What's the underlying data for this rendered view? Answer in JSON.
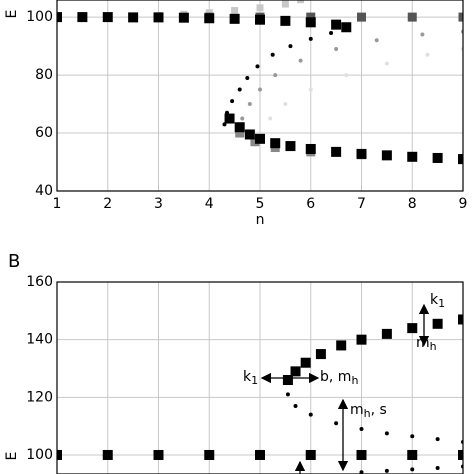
{
  "chart_data": [
    {
      "type": "scatter",
      "ylabel": "E",
      "xlabel": "n",
      "xlim": [
        1,
        9
      ],
      "ylim": [
        40,
        105.9
      ],
      "xticks": [
        1,
        2,
        3,
        4,
        5,
        6,
        7,
        8,
        9
      ],
      "yticks": [
        40,
        60,
        80,
        100
      ],
      "grid": true,
      "series": [
        {
          "color": "#c8c8c8",
          "marker": "square",
          "size": 7,
          "x": [
            3,
            3.5,
            4,
            4.5,
            5,
            5.5,
            5.8
          ],
          "y": [
            100.5,
            101,
            101.5,
            102.3,
            103.2,
            104.5,
            106
          ]
        },
        {
          "color": "#e0e0e0",
          "marker": "circle",
          "size": 4,
          "x": [
            4.9,
            5.0,
            5.2,
            5.5,
            6,
            6.7,
            7.5,
            8.3,
            9
          ],
          "y": [
            56,
            60,
            65,
            70,
            75,
            80,
            84,
            87,
            89
          ]
        },
        {
          "color": "#999999",
          "marker": "circle",
          "size": 4,
          "x": [
            4.55,
            4.65,
            4.8,
            5.0,
            5.3,
            5.8,
            6.5,
            7.3,
            8.2,
            9
          ],
          "y": [
            60,
            65,
            70,
            75,
            80,
            85,
            89,
            92,
            94,
            95
          ]
        },
        {
          "color": "#555555",
          "marker": "square",
          "size": 9,
          "x": [
            1,
            2,
            3,
            4,
            5,
            6,
            7,
            8,
            9
          ],
          "y": [
            100,
            100,
            100,
            100,
            100,
            100,
            100,
            100,
            100
          ]
        },
        {
          "color": "#888888",
          "marker": "square",
          "size": 9,
          "x": [
            4.6,
            4.9,
            5.3,
            6,
            7,
            8,
            9
          ],
          "y": [
            60,
            57,
            55,
            53.5,
            52.5,
            51.8,
            51.2
          ]
        },
        {
          "color": "#000000",
          "marker": "square",
          "size": 10,
          "x": [
            1,
            1.5,
            2,
            2.5,
            3,
            3.5,
            4,
            4.5,
            5,
            5.5,
            6,
            6.5,
            6.7
          ],
          "y": [
            100,
            100,
            100,
            99.9,
            99.9,
            99.8,
            99.6,
            99.4,
            99.1,
            98.7,
            98.2,
            97.4,
            96.5
          ]
        },
        {
          "color": "#000000",
          "marker": "circle",
          "size": 4,
          "x": [
            4.3,
            4.35,
            4.45,
            4.6,
            4.75,
            4.95,
            5.25,
            5.6,
            6.0,
            6.4,
            6.7
          ],
          "y": [
            63,
            67,
            71,
            75,
            79,
            83,
            87,
            90,
            92.5,
            94.5,
            96
          ]
        },
        {
          "color": "#000000",
          "marker": "square",
          "size": 10,
          "x": [
            4.4,
            4.6,
            4.8,
            5.0,
            5.3,
            5.6,
            6,
            6.5,
            7,
            7.5,
            8,
            8.5,
            9
          ],
          "y": [
            65,
            62,
            59.5,
            58,
            56.5,
            55.5,
            54.5,
            53.5,
            52.8,
            52.3,
            51.8,
            51.4,
            51
          ]
        }
      ]
    },
    {
      "type": "scatter",
      "panel": "B",
      "ylabel": "E",
      "xlim": [
        1,
        9
      ],
      "ylim": [
        93.4,
        160
      ],
      "xticks": [
        1,
        2,
        3,
        4,
        5,
        6,
        7,
        8,
        9
      ],
      "yticks": [
        100,
        120,
        140,
        160
      ],
      "grid": true,
      "annotations": [
        {
          "text": "k",
          "sub": "1"
        },
        {
          "text": "b, m",
          "sub": "h"
        },
        {
          "text": "m",
          "sub": "h",
          "after": ", s"
        },
        {
          "text": "k",
          "sub": "1"
        },
        {
          "text": "m",
          "sub": "h"
        }
      ],
      "series": [
        {
          "color": "#000000",
          "marker": "square",
          "size": 10,
          "x": [
            1,
            2,
            3,
            4,
            5,
            6,
            7,
            8,
            9
          ],
          "y": [
            100,
            100,
            100,
            100,
            100,
            100,
            100,
            100,
            100
          ]
        },
        {
          "color": "#000000",
          "marker": "square",
          "size": 10,
          "x": [
            5.55,
            5.7,
            5.9,
            6.2,
            6.6,
            7,
            7.5,
            8,
            8.5,
            9
          ],
          "y": [
            126,
            129,
            132,
            135,
            138,
            140,
            142,
            144,
            145.5,
            147
          ]
        },
        {
          "color": "#000000",
          "marker": "circle",
          "size": 4,
          "x": [
            5.55,
            5.7,
            6,
            6.5,
            7,
            7.5,
            8,
            8.5,
            9
          ],
          "y": [
            121,
            117,
            114,
            111,
            109,
            107.5,
            106.5,
            105.5,
            104.5
          ]
        },
        {
          "color": "#000000",
          "marker": "circle",
          "size": 4,
          "x": [
            7,
            7.5,
            8,
            8.5,
            9
          ],
          "y": [
            94,
            94.5,
            95,
            95.5,
            96
          ]
        }
      ]
    }
  ]
}
